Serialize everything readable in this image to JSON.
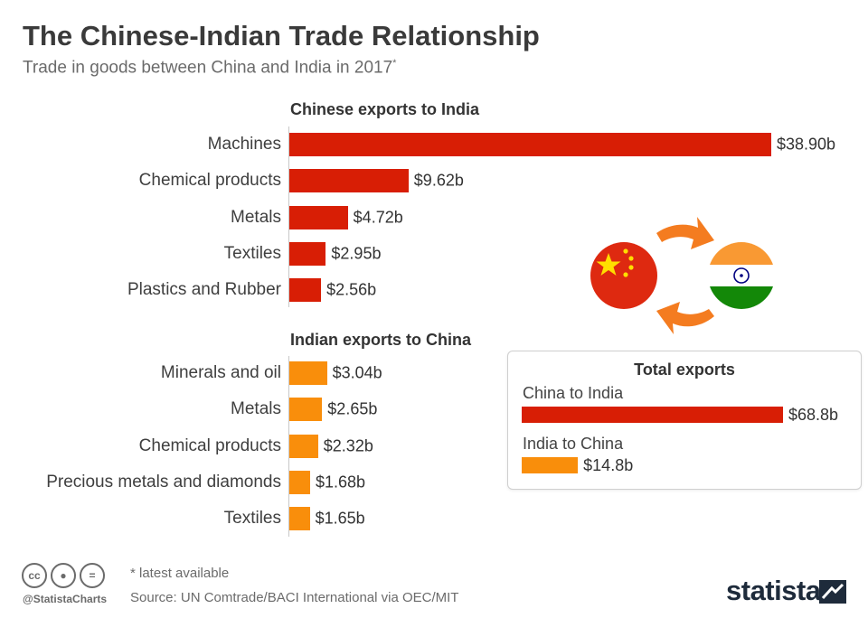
{
  "header": {
    "title": "The Chinese-Indian Trade Relationship",
    "subtitle": "Trade in goods between China and India in 2017",
    "subtitle_mark": "*"
  },
  "chart_data": [
    {
      "type": "bar",
      "orientation": "horizontal",
      "title": "Chinese exports to India",
      "categories": [
        "Machines",
        "Chemical products",
        "Metals",
        "Textiles",
        "Plastics and Rubber"
      ],
      "values": [
        38.9,
        9.62,
        4.72,
        2.95,
        2.56
      ],
      "value_labels": [
        "$38.90b",
        "$9.62b",
        "$4.72b",
        "$2.95b",
        "$2.56b"
      ],
      "unit": "USD billions",
      "color": "#d81e05"
    },
    {
      "type": "bar",
      "orientation": "horizontal",
      "title": "Indian exports to China",
      "categories": [
        "Minerals and oil",
        "Metals",
        "Chemical products",
        "Precious metals and diamonds",
        "Textiles"
      ],
      "values": [
        3.04,
        2.65,
        2.32,
        1.68,
        1.65
      ],
      "value_labels": [
        "$3.04b",
        "$2.65b",
        "$2.32b",
        "$1.68b",
        "$1.65b"
      ],
      "unit": "USD billions",
      "color": "#f98e0b"
    },
    {
      "type": "bar",
      "orientation": "horizontal",
      "title": "Total exports",
      "categories": [
        "China to India",
        "India to China"
      ],
      "values": [
        68.8,
        14.8
      ],
      "value_labels": [
        "$68.8b",
        "$14.8b"
      ],
      "unit": "USD billions",
      "colors": [
        "#d81e05",
        "#f98e0b"
      ]
    }
  ],
  "footer": {
    "note": "* latest available",
    "source": "Source: UN Comtrade/BACI International via OEC/MIT",
    "handle": "@StatistaCharts",
    "brand": "statista",
    "license_icons": [
      "cc-icon",
      "by-icon",
      "nd-icon"
    ]
  },
  "colors": {
    "china_red": "#d81e05",
    "india_orange": "#f98e0b",
    "arrow_orange": "#f47c20"
  }
}
